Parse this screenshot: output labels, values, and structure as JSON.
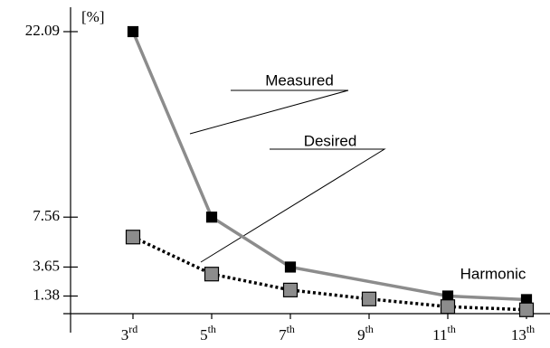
{
  "chart_data": {
    "type": "line",
    "y_label": "[%]",
    "x_label": "Harmonic",
    "annotations": [
      "Measured",
      "Desired"
    ],
    "xlim": [
      0.8,
      13.4
    ],
    "xticks": [
      {
        "value": 3,
        "label": "3rd"
      },
      {
        "value": 5,
        "label": "5th"
      },
      {
        "value": 7,
        "label": "7th"
      },
      {
        "value": 9,
        "label": "9th"
      },
      {
        "value": 11,
        "label": "11th"
      },
      {
        "value": 13,
        "label": "13th"
      }
    ],
    "ylim": [
      0,
      23
    ],
    "yticks": [
      22.09,
      7.56,
      3.65,
      1.38
    ],
    "series": [
      {
        "name": "Measured",
        "color": "#000000",
        "line_color": "#8c8c8c",
        "x": [
          3,
          5,
          7,
          11,
          13
        ],
        "values": [
          22.09,
          7.56,
          3.65,
          1.38,
          1.1
        ]
      },
      {
        "name": "Desired",
        "color": "#8c8c8c",
        "line_color": "#000000",
        "x": [
          3,
          5,
          7,
          9,
          11,
          13
        ],
        "values": [
          6.0,
          3.1,
          1.85,
          1.15,
          0.55,
          0.3
        ]
      }
    ]
  }
}
